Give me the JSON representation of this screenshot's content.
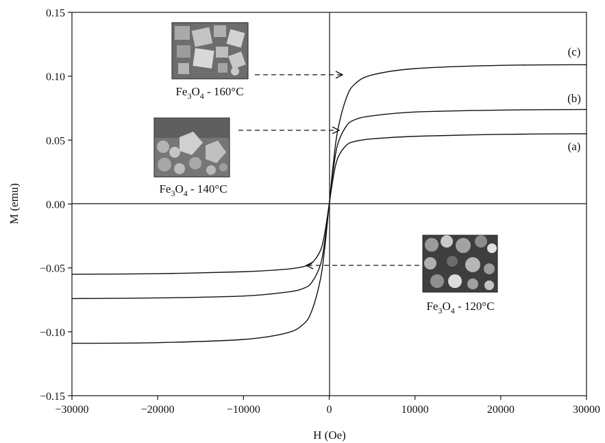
{
  "chart_data": {
    "type": "line",
    "xlabel": "H (Oe)",
    "ylabel": "M (emu)",
    "xlim": [
      -30000,
      30000
    ],
    "ylim": [
      -0.15,
      0.15
    ],
    "x_ticks": [
      -30000,
      -20000,
      -10000,
      0,
      10000,
      20000,
      30000
    ],
    "x_tick_labels": [
      "−30000",
      "−20000",
      "−10000",
      "0",
      "10000",
      "20000",
      "30000"
    ],
    "y_ticks": [
      -0.15,
      -0.1,
      -0.05,
      0.0,
      0.05,
      0.1,
      0.15
    ],
    "y_tick_labels": [
      "−0.15",
      "−0.10",
      "−0.05",
      "0.00",
      "0.05",
      "0.10",
      "0.15"
    ],
    "grid": false,
    "series": [
      {
        "name": "(a)",
        "x": [
          -30000,
          -20000,
          -10000,
          -5000,
          -3000,
          -2000,
          -1000,
          -500,
          0,
          500,
          1000,
          2000,
          3000,
          5000,
          10000,
          20000,
          30000
        ],
        "y": [
          -0.055,
          -0.0545,
          -0.053,
          -0.051,
          -0.049,
          -0.046,
          -0.036,
          -0.022,
          0.0,
          0.022,
          0.036,
          0.046,
          0.049,
          0.051,
          0.053,
          0.0545,
          0.055
        ]
      },
      {
        "name": "(b)",
        "x": [
          -30000,
          -20000,
          -10000,
          -5000,
          -3000,
          -2000,
          -1000,
          -500,
          0,
          500,
          1000,
          2000,
          3000,
          5000,
          10000,
          20000,
          30000
        ],
        "y": [
          -0.074,
          -0.0735,
          -0.072,
          -0.069,
          -0.066,
          -0.061,
          -0.047,
          -0.028,
          0.0,
          0.028,
          0.047,
          0.061,
          0.066,
          0.069,
          0.072,
          0.0735,
          0.074
        ]
      },
      {
        "name": "(c)",
        "x": [
          -30000,
          -20000,
          -10000,
          -5000,
          -3000,
          -2000,
          -1000,
          -500,
          0,
          500,
          1000,
          2000,
          3000,
          5000,
          10000,
          20000,
          30000
        ],
        "y": [
          -0.109,
          -0.1085,
          -0.106,
          -0.101,
          -0.094,
          -0.083,
          -0.058,
          -0.033,
          0.0,
          0.033,
          0.058,
          0.083,
          0.094,
          0.101,
          0.106,
          0.1085,
          0.109
        ]
      }
    ],
    "annotations": [
      {
        "id": "c",
        "text": "(c)"
      },
      {
        "id": "b",
        "text": "(b)"
      },
      {
        "id": "a",
        "text": "(a)"
      }
    ],
    "insets": [
      {
        "id": "t160",
        "label_base": "Fe",
        "sub1": "3",
        "mid": "O",
        "sub2": "4",
        "suffix": " - 160°C"
      },
      {
        "id": "t140",
        "label_base": "Fe",
        "sub1": "3",
        "mid": "O",
        "sub2": "4",
        "suffix": " - 140°C"
      },
      {
        "id": "t120",
        "label_base": "Fe",
        "sub1": "3",
        "mid": "O",
        "sub2": "4",
        "suffix": " - 120°C"
      }
    ]
  }
}
